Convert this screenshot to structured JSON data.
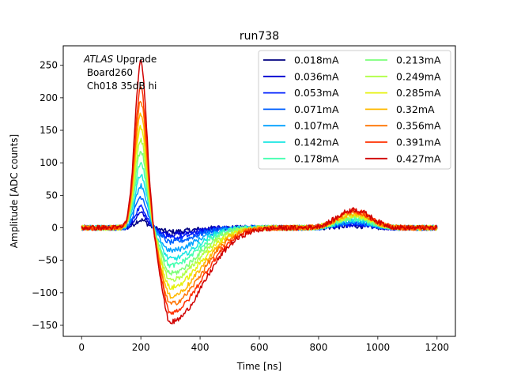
{
  "chart_data": {
    "type": "line",
    "title": "run738",
    "xlabel": "Time [ns]",
    "ylabel": "Amplitude [ADC counts]",
    "xlim": [
      -62,
      1262
    ],
    "ylim": [
      -167,
      280
    ],
    "xticks": [
      0,
      200,
      400,
      600,
      800,
      1000,
      1200
    ],
    "yticks": [
      -150,
      -100,
      -50,
      0,
      50,
      100,
      150,
      200,
      250
    ],
    "annotation": {
      "italic": "ATLAS",
      "rest": " Upgrade",
      "line2": " Board260",
      "line3": " Ch018 35dB hi"
    },
    "legend_position": "top-right",
    "pulse_shape": {
      "description": "Per-series approximate waveform: baseline 0, positive peak near 200 ns, negative undershoot near 300 ns, recovery ~500 ns, small bump near 920 ns",
      "peak_time_ns": 200,
      "undershoot_time_ns": 300,
      "bump_time_ns": 920
    },
    "series": [
      {
        "name": "0.018mA",
        "color": "#00007f",
        "peak": 12,
        "undershoot": -6,
        "bump": 3
      },
      {
        "name": "0.036mA",
        "color": "#0000d0",
        "peak": 22,
        "undershoot": -10,
        "bump": 5
      },
      {
        "name": "0.053mA",
        "color": "#0020ff",
        "peak": 32,
        "undershoot": -16,
        "bump": 6
      },
      {
        "name": "0.071mA",
        "color": "#0060ff",
        "peak": 48,
        "undershoot": -22,
        "bump": 8
      },
      {
        "name": "0.107mA",
        "color": "#00a0ff",
        "peak": 65,
        "undershoot": -35,
        "bump": 10
      },
      {
        "name": "0.142mA",
        "color": "#1ae6e2",
        "peak": 82,
        "undershoot": -48,
        "bump": 12
      },
      {
        "name": "0.178mA",
        "color": "#46ffb1",
        "peak": 100,
        "undershoot": -58,
        "bump": 14
      },
      {
        "name": "0.213mA",
        "color": "#7cff79",
        "peak": 118,
        "undershoot": -70,
        "bump": 16
      },
      {
        "name": "0.249mA",
        "color": "#b1ff46",
        "peak": 135,
        "undershoot": -80,
        "bump": 18
      },
      {
        "name": "0.285mA",
        "color": "#e6f20d",
        "peak": 155,
        "undershoot": -92,
        "bump": 20
      },
      {
        "name": "0.32mA",
        "color": "#ffb900",
        "peak": 175,
        "undershoot": -105,
        "bump": 22
      },
      {
        "name": "0.356mA",
        "color": "#ff7300",
        "peak": 195,
        "undershoot": -117,
        "bump": 24
      },
      {
        "name": "0.391mA",
        "color": "#ff3000",
        "peak": 215,
        "undershoot": -130,
        "bump": 26
      },
      {
        "name": "0.427mA",
        "color": "#d00000",
        "peak": 255,
        "undershoot": -145,
        "bump": 28
      }
    ]
  }
}
